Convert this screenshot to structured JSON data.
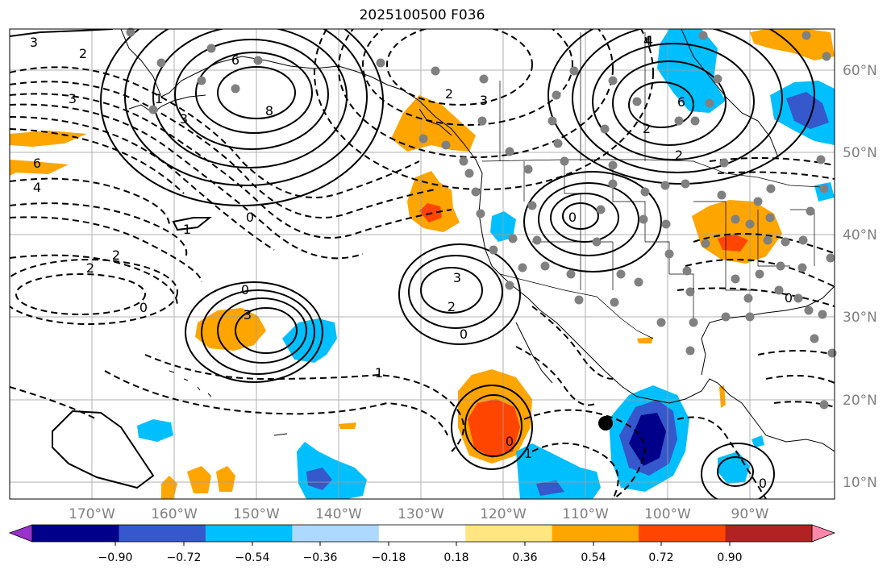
{
  "title": "2025100500 F036",
  "map": {
    "lon_labels": [
      "170°W",
      "160°W",
      "150°W",
      "140°W",
      "130°W",
      "120°W",
      "110°W",
      "100°W",
      "90°W"
    ],
    "lat_labels": [
      "60°N",
      "50°N",
      "40°N",
      "30°N",
      "20°N",
      "10°N"
    ],
    "contour_labels": [
      "3",
      "2",
      "6",
      "8",
      "3",
      "1",
      "3",
      "6",
      "4",
      "2",
      "2",
      "0",
      "1",
      "2",
      "2",
      "0",
      "3",
      "0",
      "3",
      "2",
      "4",
      "6",
      "3",
      "2",
      "0",
      "1",
      "0",
      "0",
      "1",
      "0",
      "0",
      "4"
    ]
  },
  "colorbar": {
    "tick_labels": [
      "−0.90",
      "−0.72",
      "−0.54",
      "−0.36",
      "−0.18",
      "0.18",
      "0.36",
      "0.54",
      "0.72",
      "0.90"
    ],
    "colors": [
      "#9932cc",
      "#00008b",
      "#3558cc",
      "#00bfff",
      "#add8ff",
      "#ffffff",
      "#ffe680",
      "#ffa500",
      "#ff4500",
      "#b22222",
      "#ff88aa"
    ]
  }
}
